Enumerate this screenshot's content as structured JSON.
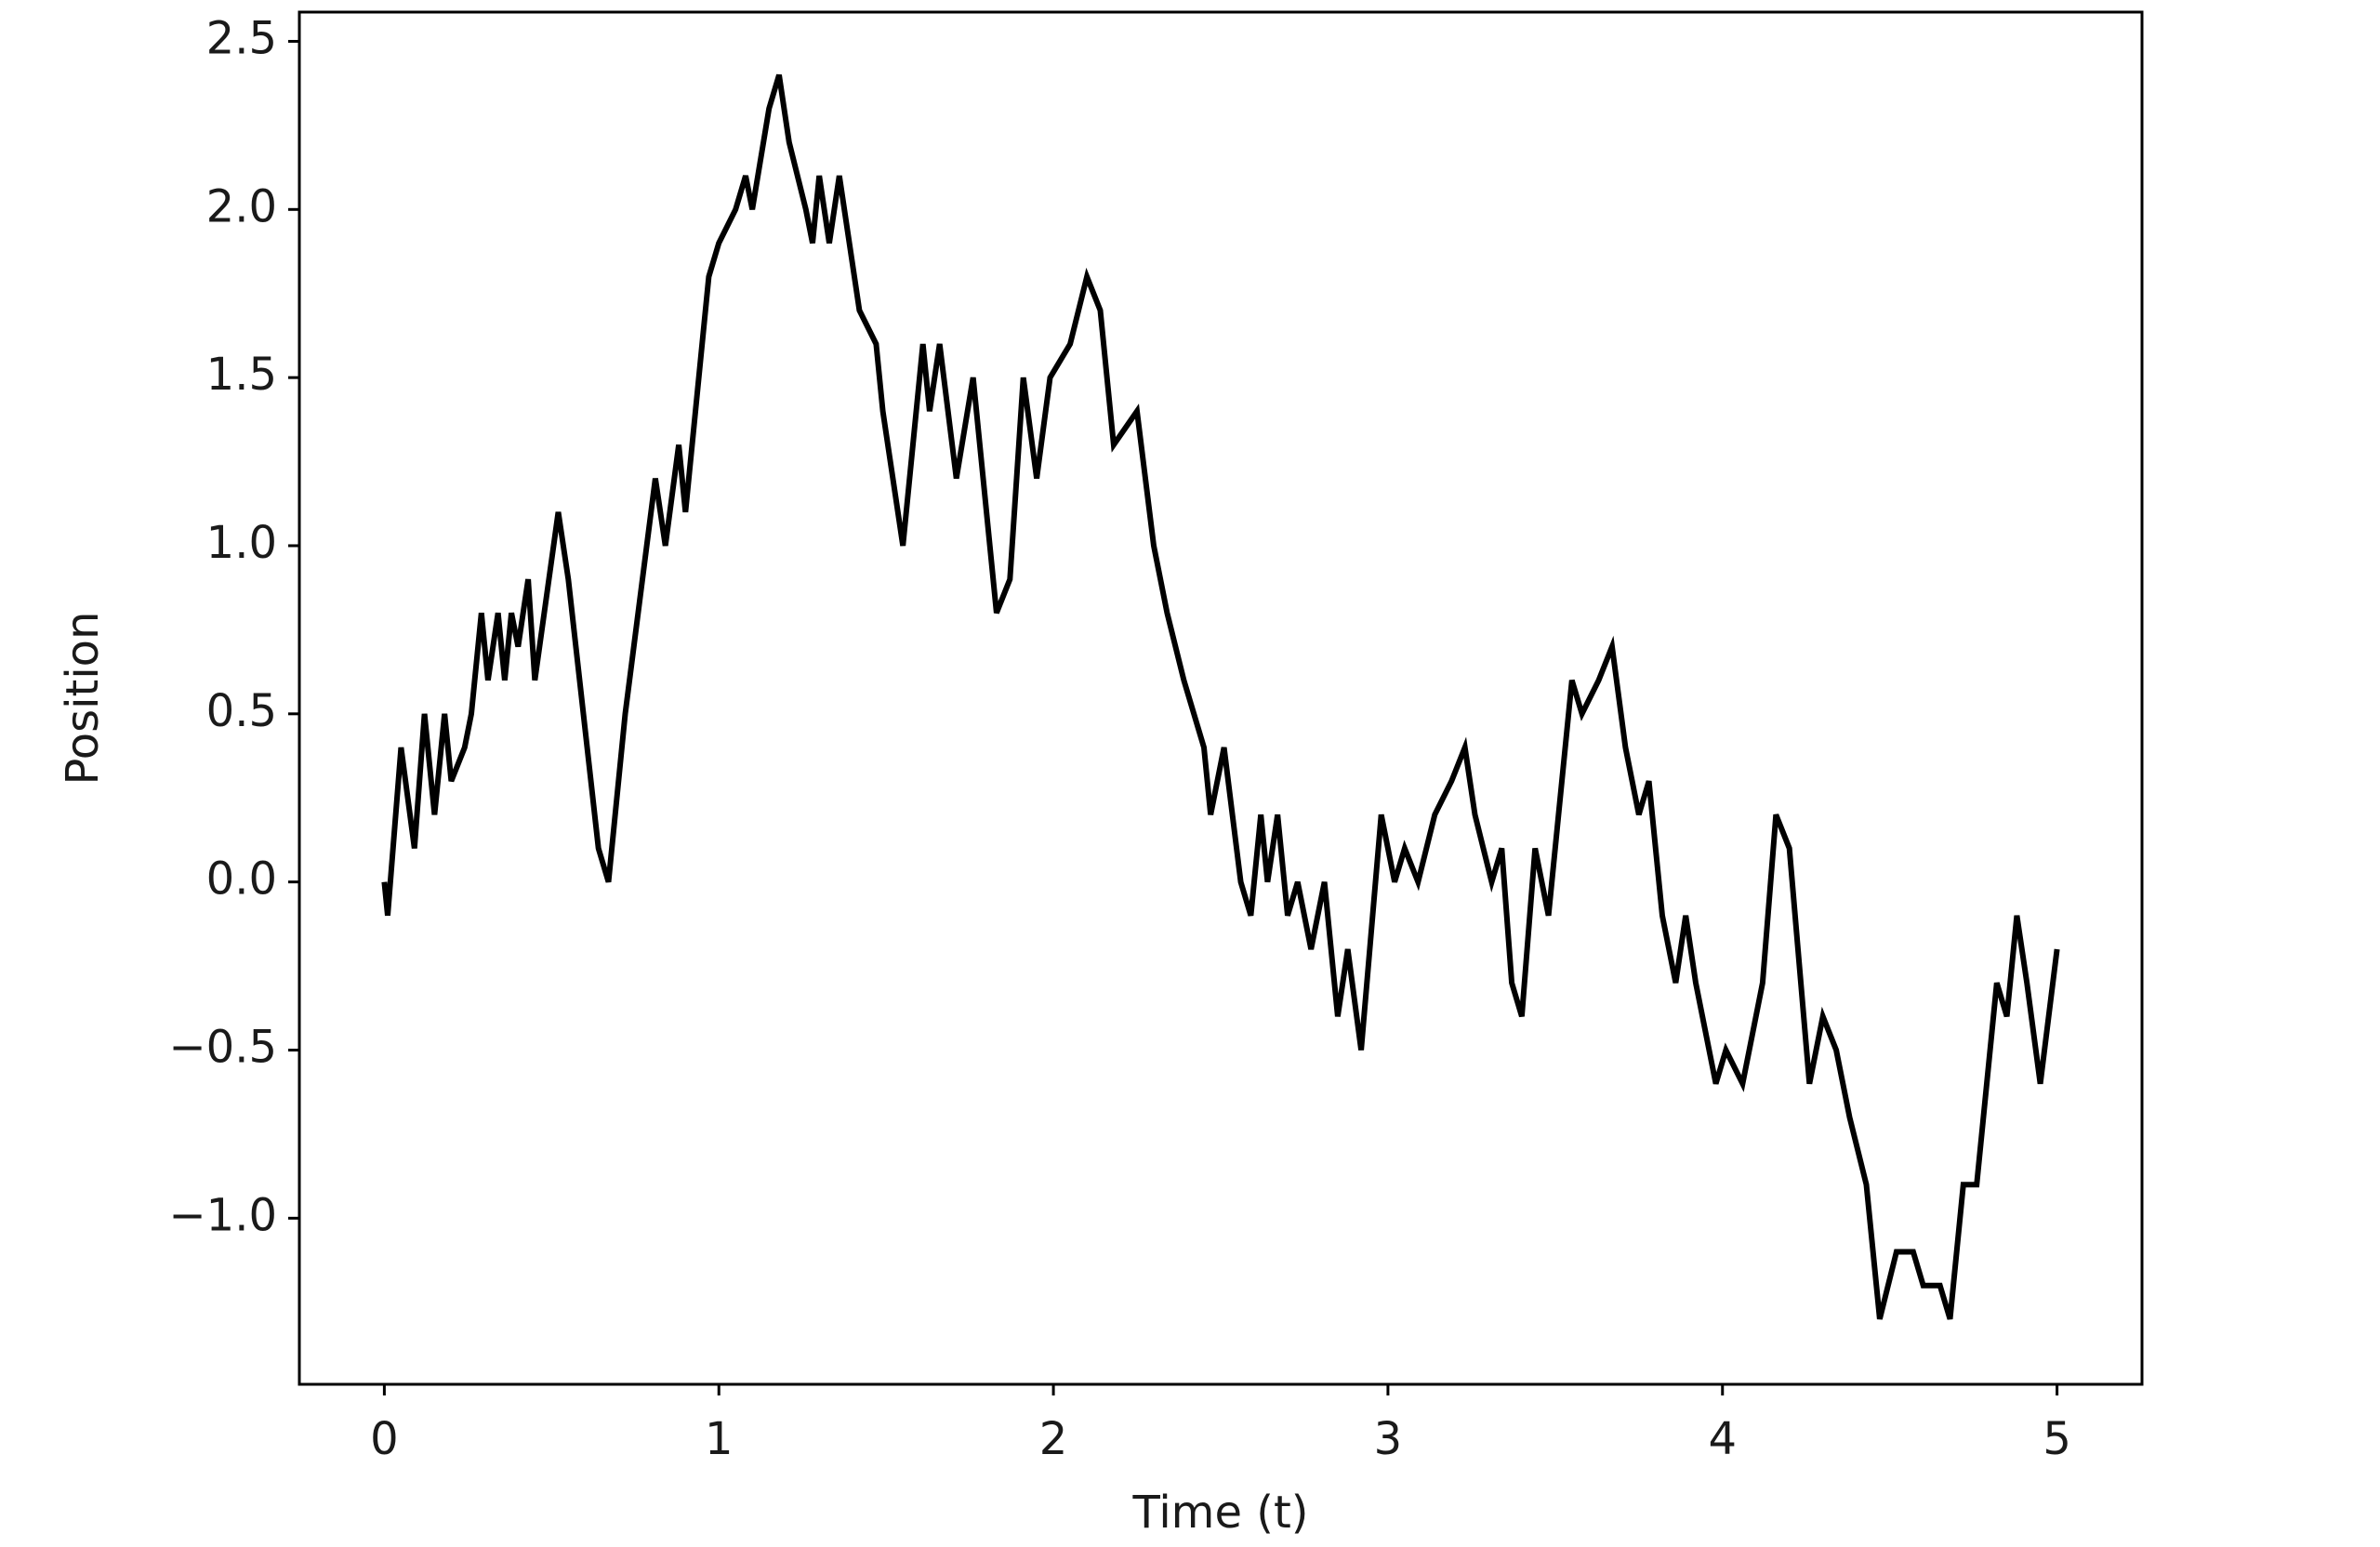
{
  "chart_data": {
    "type": "line",
    "x_label": "Time (t)",
    "y_label": "Position",
    "series": [
      {
        "color": "#000000",
        "x": [
          0,
          0.01,
          0.05,
          0.09,
          0.12,
          0.15,
          0.18,
          0.2,
          0.24,
          0.26,
          0.29,
          0.31,
          0.34,
          0.36,
          0.38,
          0.4,
          0.43,
          0.45,
          0.52,
          0.55,
          0.64,
          0.67,
          0.72,
          0.81,
          0.84,
          0.88,
          0.9,
          0.97,
          1.0,
          1.05,
          1.08,
          1.1,
          1.15,
          1.18,
          1.21,
          1.26,
          1.28,
          1.3,
          1.33,
          1.36,
          1.42,
          1.47,
          1.49,
          1.55,
          1.61,
          1.63,
          1.66,
          1.71,
          1.76,
          1.83,
          1.87,
          1.91,
          1.95,
          1.99,
          2.05,
          2.1,
          2.14,
          2.18,
          2.25,
          2.3,
          2.34,
          2.39,
          2.45,
          2.47,
          2.51,
          2.56,
          2.59,
          2.62,
          2.64,
          2.67,
          2.7,
          2.73,
          2.77,
          2.81,
          2.85,
          2.88,
          2.92,
          2.98,
          3.02,
          3.05,
          3.09,
          3.14,
          3.19,
          3.23,
          3.26,
          3.31,
          3.34,
          3.37,
          3.4,
          3.44,
          3.48,
          3.55,
          3.58,
          3.63,
          3.67,
          3.71,
          3.75,
          3.78,
          3.82,
          3.86,
          3.89,
          3.92,
          3.98,
          4.01,
          4.06,
          4.12,
          4.16,
          4.2,
          4.26,
          4.3,
          4.34,
          4.38,
          4.43,
          4.47,
          4.52,
          4.57,
          4.6,
          4.65,
          4.68,
          4.72,
          4.76,
          4.82,
          4.85,
          4.88,
          4.91,
          4.95,
          5.0
        ],
        "values": [
          0,
          -0.1,
          0.4,
          0.1,
          0.5,
          0.2,
          0.5,
          0.3,
          0.4,
          0.5,
          0.8,
          0.6,
          0.8,
          0.6,
          0.8,
          0.7,
          0.9,
          0.6,
          1.1,
          0.9,
          0.1,
          0.0,
          0.5,
          1.2,
          1.0,
          1.3,
          1.1,
          1.8,
          1.9,
          2.0,
          2.1,
          2.0,
          2.3,
          2.4,
          2.2,
          2.0,
          1.9,
          2.1,
          1.9,
          2.1,
          1.7,
          1.6,
          1.4,
          1.0,
          1.6,
          1.4,
          1.6,
          1.2,
          1.5,
          0.8,
          0.9,
          1.5,
          1.2,
          1.5,
          1.6,
          1.8,
          1.7,
          1.3,
          1.4,
          1.0,
          0.8,
          0.6,
          0.4,
          0.2,
          0.4,
          0.0,
          -0.1,
          0.2,
          0.0,
          0.2,
          -0.1,
          0.0,
          -0.2,
          0.0,
          -0.4,
          -0.2,
          -0.5,
          0.2,
          0.0,
          0.1,
          0.0,
          0.2,
          0.3,
          0.4,
          0.2,
          0.0,
          0.1,
          -0.3,
          -0.4,
          0.1,
          -0.1,
          0.6,
          0.5,
          0.6,
          0.7,
          0.4,
          0.2,
          0.3,
          -0.1,
          -0.3,
          -0.1,
          -0.3,
          -0.6,
          -0.5,
          -0.6,
          -0.3,
          0.2,
          0.1,
          -0.6,
          -0.4,
          -0.5,
          -0.7,
          -0.9,
          -1.3,
          -1.1,
          -1.1,
          -1.2,
          -1.2,
          -1.3,
          -0.9,
          -0.9,
          -0.3,
          -0.4,
          -0.1,
          -0.3,
          -0.6,
          -0.2
        ]
      }
    ],
    "xlim": [
      -0.254,
      5.254
    ],
    "ylim": [
      -1.494,
      2.587
    ],
    "xticks": [
      0,
      1,
      2,
      3,
      4,
      5
    ],
    "yticks": [
      {
        "value": -1.0,
        "label": "−1.0"
      },
      {
        "value": -0.5,
        "label": "−0.5"
      },
      {
        "value": 0.0,
        "label": "0.0"
      },
      0.5,
      {
        "value": 1.0,
        "label": "1.0"
      },
      1.5,
      {
        "value": 2.0,
        "label": "2.0"
      },
      2.5
    ],
    "grid": false
  }
}
